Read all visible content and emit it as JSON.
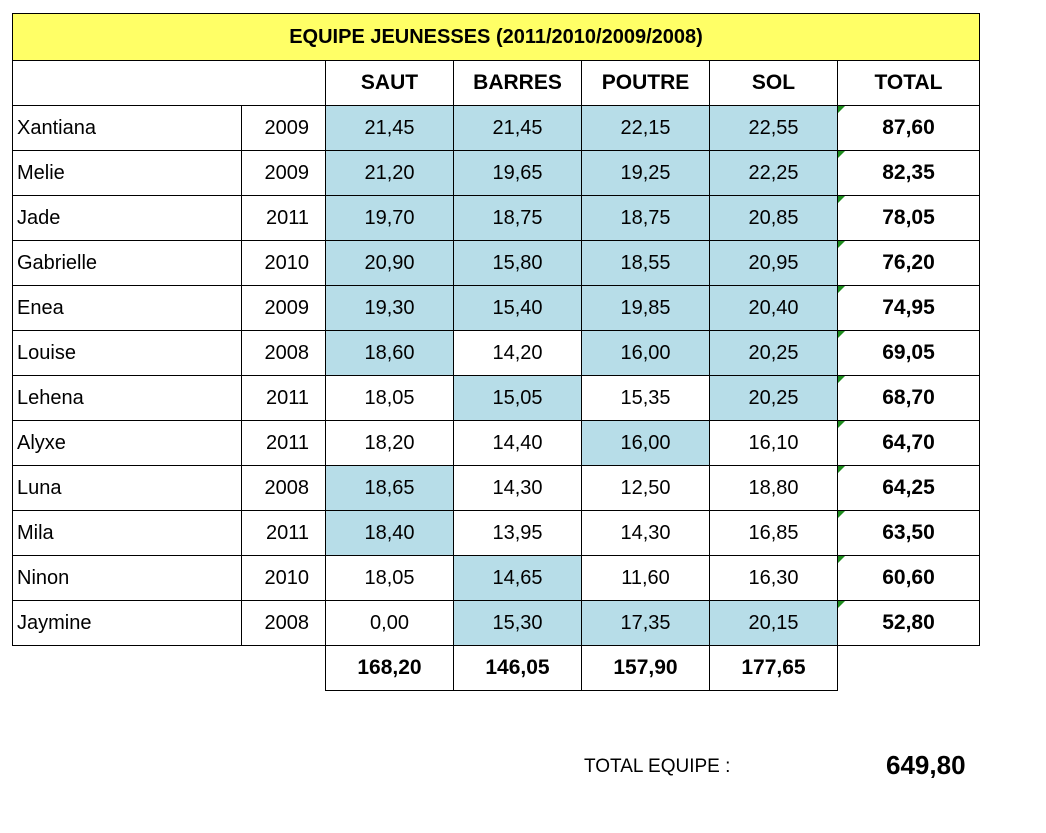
{
  "title": "EQUIPE JEUNESSES (2011/2010/2009/2008)",
  "headers": {
    "saut": "SAUT",
    "barres": "BARRES",
    "poutre": "POUTRE",
    "sol": "SOL",
    "total": "TOTAL"
  },
  "colors": {
    "title_bg": "#ffff66",
    "highlight": "#b7dde8",
    "flag": "#1e8c1e"
  },
  "rows": [
    {
      "name": "Xantiana",
      "year": "2009",
      "saut": "21,45",
      "barres": "21,45",
      "poutre": "22,15",
      "sol": "22,55",
      "total": "87,60",
      "highlight": [
        true,
        true,
        true,
        true
      ]
    },
    {
      "name": "Melie",
      "year": "2009",
      "saut": "21,20",
      "barres": "19,65",
      "poutre": "19,25",
      "sol": "22,25",
      "total": "82,35",
      "highlight": [
        true,
        true,
        true,
        true
      ]
    },
    {
      "name": "Jade",
      "year": "2011",
      "saut": "19,70",
      "barres": "18,75",
      "poutre": "18,75",
      "sol": "20,85",
      "total": "78,05",
      "highlight": [
        true,
        true,
        true,
        true
      ]
    },
    {
      "name": "Gabrielle",
      "year": "2010",
      "saut": "20,90",
      "barres": "15,80",
      "poutre": "18,55",
      "sol": "20,95",
      "total": "76,20",
      "highlight": [
        true,
        true,
        true,
        true
      ]
    },
    {
      "name": "Enea",
      "year": "2009",
      "saut": "19,30",
      "barres": "15,40",
      "poutre": "19,85",
      "sol": "20,40",
      "total": "74,95",
      "highlight": [
        true,
        true,
        true,
        true
      ]
    },
    {
      "name": "Louise",
      "year": "2008",
      "saut": "18,60",
      "barres": "14,20",
      "poutre": "16,00",
      "sol": "20,25",
      "total": "69,05",
      "highlight": [
        true,
        false,
        true,
        true
      ]
    },
    {
      "name": "Lehena",
      "year": "2011",
      "saut": "18,05",
      "barres": "15,05",
      "poutre": "15,35",
      "sol": "20,25",
      "total": "68,70",
      "highlight": [
        false,
        true,
        false,
        true
      ]
    },
    {
      "name": "Alyxe",
      "year": "2011",
      "saut": "18,20",
      "barres": "14,40",
      "poutre": "16,00",
      "sol": "16,10",
      "total": "64,70",
      "highlight": [
        false,
        false,
        true,
        false
      ]
    },
    {
      "name": "Luna",
      "year": "2008",
      "saut": "18,65",
      "barres": "14,30",
      "poutre": "12,50",
      "sol": "18,80",
      "total": "64,25",
      "highlight": [
        true,
        false,
        false,
        false
      ]
    },
    {
      "name": "Mila",
      "year": "2011",
      "saut": "18,40",
      "barres": "13,95",
      "poutre": "14,30",
      "sol": "16,85",
      "total": "63,50",
      "highlight": [
        true,
        false,
        false,
        false
      ]
    },
    {
      "name": "Ninon",
      "year": "2010",
      "saut": "18,05",
      "barres": "14,65",
      "poutre": "11,60",
      "sol": "16,30",
      "total": "60,60",
      "highlight": [
        false,
        true,
        false,
        false
      ]
    },
    {
      "name": "Jaymine",
      "year": "2008",
      "saut": "0,00",
      "barres": "15,30",
      "poutre": "17,35",
      "sol": "20,15",
      "total": "52,80",
      "highlight": [
        false,
        true,
        true,
        true
      ]
    }
  ],
  "column_totals": {
    "saut": "168,20",
    "barres": "146,05",
    "poutre": "157,90",
    "sol": "177,65"
  },
  "team_total": {
    "label": "TOTAL EQUIPE :",
    "value": "649,80"
  }
}
